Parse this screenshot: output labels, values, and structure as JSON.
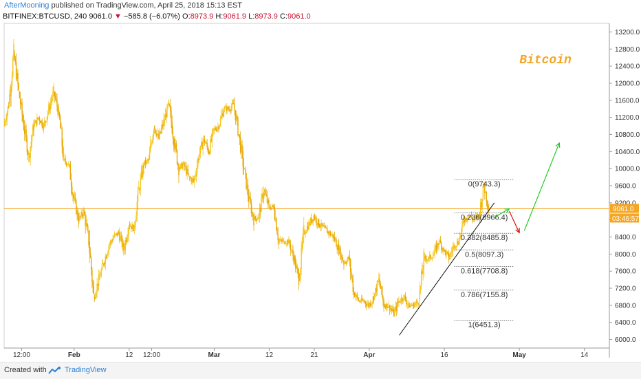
{
  "header": {
    "author": "AfterMooning",
    "published": " published on TradingView.com, April 25, 2018 15:13 EST",
    "symbol": "BITFINEX:BTCUSD, 240",
    "last": "9061.0",
    "change": "−585.8 (−6.07%)",
    "o_label": "O:",
    "o_val": "8973.9",
    "h_label": "H:",
    "h_val": "9061.9",
    "l_label": "L:",
    "l_val": "8973.9",
    "c_label": "C:",
    "c_val": "9061.0"
  },
  "footer": {
    "created": "Created with",
    "brand": "TradingView"
  },
  "colors": {
    "candle": "#f5c518",
    "candle_dark": "#e8a800",
    "price_line": "#f5a623",
    "label_orange": "#f5a623",
    "green": "#22cc22",
    "red": "#dd1111"
  },
  "chart_data": {
    "type": "candlestick",
    "symbol": "BTCUSD",
    "interval": "240",
    "title_annotation": "Bitcoin",
    "ylim": [
      5800,
      13400
    ],
    "y_ticks": [
      6000,
      6400,
      6800,
      7200,
      7600,
      8000,
      8400,
      8800,
      9200,
      9600,
      10000,
      10400,
      10800,
      11200,
      11600,
      12000,
      12400,
      12800,
      13200
    ],
    "y_tick_labels": [
      "6000.0",
      "6400.0",
      "6800.0",
      "7200.0",
      "7600.0",
      "8000.0",
      "8400.0",
      "8800.0",
      "9200.0",
      "9600.0",
      "10000.0",
      "10400.0",
      "10800.0",
      "11200.0",
      "11600.0",
      "12000.0",
      "12400.0",
      "12800.0",
      "13200.0"
    ],
    "x_tick_labels": [
      "12:00",
      "Feb",
      "12",
      "12:00",
      "Mar",
      "12",
      "21",
      "Apr",
      "16",
      "May",
      "14"
    ],
    "x_range": [
      "2018-01-18",
      "2018-05-19"
    ],
    "current_price": 9061.0,
    "current_price_label": "9061.0",
    "countdown_label": "03:46:57",
    "price_path": [
      [
        "2018-01-18",
        11000
      ],
      [
        "2018-01-19",
        11500
      ],
      [
        "2018-01-20",
        12700
      ],
      [
        "2018-01-21",
        11800
      ],
      [
        "2018-01-22",
        11000
      ],
      [
        "2018-01-23",
        10300
      ],
      [
        "2018-01-24",
        11000
      ],
      [
        "2018-01-25",
        11200
      ],
      [
        "2018-01-26",
        11000
      ],
      [
        "2018-01-27",
        11400
      ],
      [
        "2018-01-28",
        11800
      ],
      [
        "2018-01-29",
        11300
      ],
      [
        "2018-01-30",
        10200
      ],
      [
        "2018-01-31",
        10100
      ],
      [
        "2018-02-01",
        9300
      ],
      [
        "2018-02-02",
        8800
      ],
      [
        "2018-02-03",
        9000
      ],
      [
        "2018-02-04",
        8300
      ],
      [
        "2018-02-05",
        7000
      ],
      [
        "2018-02-06",
        7400
      ],
      [
        "2018-02-07",
        7800
      ],
      [
        "2018-02-08",
        8200
      ],
      [
        "2018-02-09",
        8400
      ],
      [
        "2018-02-10",
        8500
      ],
      [
        "2018-02-11",
        8100
      ],
      [
        "2018-02-12",
        8700
      ],
      [
        "2018-02-13",
        8600
      ],
      [
        "2018-02-14",
        9500
      ],
      [
        "2018-02-15",
        10100
      ],
      [
        "2018-02-16",
        10200
      ],
      [
        "2018-02-17",
        11000
      ],
      [
        "2018-02-18",
        10700
      ],
      [
        "2018-02-19",
        11100
      ],
      [
        "2018-02-20",
        11500
      ],
      [
        "2018-02-21",
        10700
      ],
      [
        "2018-02-22",
        10000
      ],
      [
        "2018-02-23",
        10100
      ],
      [
        "2018-02-24",
        9800
      ],
      [
        "2018-02-25",
        9700
      ],
      [
        "2018-02-26",
        10300
      ],
      [
        "2018-02-27",
        10700
      ],
      [
        "2018-02-28",
        10400
      ],
      [
        "2018-03-01",
        10900
      ],
      [
        "2018-03-02",
        11000
      ],
      [
        "2018-03-03",
        11400
      ],
      [
        "2018-03-04",
        11400
      ],
      [
        "2018-03-05",
        11500
      ],
      [
        "2018-03-06",
        10800
      ],
      [
        "2018-03-07",
        10000
      ],
      [
        "2018-03-08",
        9300
      ],
      [
        "2018-03-09",
        8800
      ],
      [
        "2018-03-10",
        8900
      ],
      [
        "2018-03-11",
        9500
      ],
      [
        "2018-03-12",
        9100
      ],
      [
        "2018-03-13",
        9100
      ],
      [
        "2018-03-14",
        8300
      ],
      [
        "2018-03-15",
        8300
      ],
      [
        "2018-03-16",
        8300
      ],
      [
        "2018-03-17",
        7900
      ],
      [
        "2018-03-18",
        7400
      ],
      [
        "2018-03-19",
        8500
      ],
      [
        "2018-03-20",
        8700
      ],
      [
        "2018-03-21",
        8900
      ],
      [
        "2018-03-22",
        8700
      ],
      [
        "2018-03-23",
        8600
      ],
      [
        "2018-03-24",
        8500
      ],
      [
        "2018-03-25",
        8400
      ],
      [
        "2018-03-26",
        8100
      ],
      [
        "2018-03-27",
        7800
      ],
      [
        "2018-03-28",
        7900
      ],
      [
        "2018-03-29",
        7100
      ],
      [
        "2018-03-30",
        6900
      ],
      [
        "2018-03-31",
        6900
      ],
      [
        "2018-04-01",
        6800
      ],
      [
        "2018-04-02",
        7000
      ],
      [
        "2018-04-03",
        7400
      ],
      [
        "2018-04-04",
        6800
      ],
      [
        "2018-04-05",
        6800
      ],
      [
        "2018-04-06",
        6600
      ],
      [
        "2018-04-07",
        6900
      ],
      [
        "2018-04-08",
        7000
      ],
      [
        "2018-04-09",
        6800
      ],
      [
        "2018-04-10",
        6800
      ],
      [
        "2018-04-11",
        6900
      ],
      [
        "2018-04-12",
        7900
      ],
      [
        "2018-04-13",
        7900
      ],
      [
        "2018-04-14",
        8000
      ],
      [
        "2018-04-15",
        8300
      ],
      [
        "2018-04-16",
        8100
      ],
      [
        "2018-04-17",
        7900
      ],
      [
        "2018-04-18",
        8200
      ],
      [
        "2018-04-19",
        8300
      ],
      [
        "2018-04-20",
        8800
      ],
      [
        "2018-04-21",
        8900
      ],
      [
        "2018-04-22",
        8800
      ],
      [
        "2018-04-23",
        8900
      ],
      [
        "2018-04-24",
        9600
      ],
      [
        "2018-04-25",
        9061
      ]
    ],
    "fibonacci": {
      "start_date": "2018-04-18",
      "end_date": "2018-04-30",
      "levels": [
        {
          "label": "0(9743.3)",
          "price": 9743.3
        },
        {
          "label": "0.236(8966.4)",
          "price": 8966.4
        },
        {
          "label": "0.382(8485.8)",
          "price": 8485.8
        },
        {
          "label": "0.5(8097.3)",
          "price": 8097.3
        },
        {
          "label": "0.618(7708.8)",
          "price": 7708.8
        },
        {
          "label": "0.786(7155.8)",
          "price": 7155.8
        },
        {
          "label": "1(6451.3)",
          "price": 6451.3
        }
      ]
    },
    "trendline": {
      "from": [
        "2018-04-07",
        6100
      ],
      "to": [
        "2018-04-26",
        9200
      ]
    },
    "arrows": [
      {
        "color": "green",
        "from": [
          "2018-04-26",
          8860
        ],
        "to": [
          "2018-04-29",
          9060
        ]
      },
      {
        "color": "red",
        "from": [
          "2018-04-29",
          9000
        ],
        "to": [
          "2018-05-01",
          8500
        ]
      },
      {
        "color": "green",
        "from": [
          "2018-05-02",
          8550
        ],
        "to": [
          "2018-05-09",
          10600
        ]
      }
    ]
  }
}
